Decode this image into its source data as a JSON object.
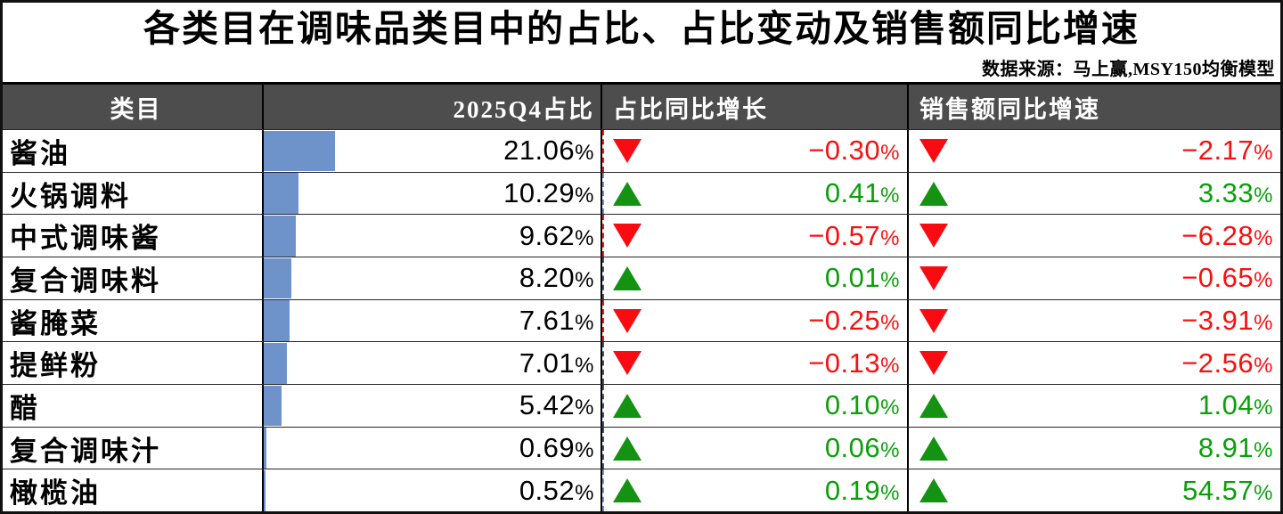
{
  "title": "各类目在调味品类目中的占比、占比变动及销售额同比增速",
  "source": "数据来源：马上赢,MSY150均衡模型",
  "colors": {
    "header_bg": "#4d4d4d",
    "header_text": "#ffffff",
    "bar": "#6e93cb",
    "up_text": "#0aa00a",
    "down_text": "#f8100f",
    "up_triangle": "#149312",
    "down_triangle": "#fb0a12"
  },
  "table": {
    "headers": [
      "类目",
      "2025Q4占比",
      "占比同比增长",
      "销售额同比增速"
    ],
    "rows": [
      {
        "category": "酱油",
        "share": "21.06%",
        "change": "−0.30%",
        "change_dir": "down",
        "growth": "−2.17%",
        "growth_dir": "down"
      },
      {
        "category": "火锅调料",
        "share": "10.29%",
        "change": "0.41%",
        "change_dir": "up",
        "growth": "3.33%",
        "growth_dir": "up"
      },
      {
        "category": "中式调味酱",
        "share": "9.62%",
        "change": "−0.57%",
        "change_dir": "down",
        "growth": "−6.28%",
        "growth_dir": "down"
      },
      {
        "category": "复合调味料",
        "share": "8.20%",
        "change": "0.01%",
        "change_dir": "up",
        "growth": "−0.65%",
        "growth_dir": "down"
      },
      {
        "category": "酱腌菜",
        "share": "7.61%",
        "change": "−0.25%",
        "change_dir": "down",
        "growth": "−3.91%",
        "growth_dir": "down"
      },
      {
        "category": "提鲜粉",
        "share": "7.01%",
        "change": "−0.13%",
        "change_dir": "down",
        "growth": "−2.56%",
        "growth_dir": "down"
      },
      {
        "category": "醋",
        "share": "5.42%",
        "change": "0.10%",
        "change_dir": "up",
        "growth": "1.04%",
        "growth_dir": "up"
      },
      {
        "category": "复合调味汁",
        "share": "0.69%",
        "change": "0.06%",
        "change_dir": "up",
        "growth": "8.91%",
        "growth_dir": "up"
      },
      {
        "category": "橄榄油",
        "share": "0.52%",
        "change": "0.19%",
        "change_dir": "up",
        "growth": "54.57%",
        "growth_dir": "up"
      }
    ]
  },
  "chart_data": {
    "type": "table",
    "title": "各类目在调味品类目中的占比、占比变动及销售额同比增速",
    "source": "数据来源：马上赢,MSY150均衡模型",
    "categories": [
      "酱油",
      "火锅调料",
      "中式调味酱",
      "复合调味料",
      "酱腌菜",
      "提鲜粉",
      "醋",
      "复合调味汁",
      "橄榄油"
    ],
    "series": [
      {
        "name": "2025Q4占比",
        "unit": "%",
        "values": [
          21.06,
          10.29,
          9.62,
          8.2,
          7.61,
          7.01,
          5.42,
          0.69,
          0.52
        ]
      },
      {
        "name": "占比同比增长",
        "unit": "%",
        "values": [
          -0.3,
          0.41,
          -0.57,
          0.01,
          -0.25,
          -0.13,
          0.1,
          0.06,
          0.19
        ]
      },
      {
        "name": "销售额同比增速",
        "unit": "%",
        "values": [
          -2.17,
          3.33,
          -6.28,
          -0.65,
          -3.91,
          -2.56,
          1.04,
          8.91,
          54.57
        ]
      }
    ],
    "layout": {
      "share_bar_embedded_in_cells": true,
      "bar_scale_percent_of_column": 1.0,
      "grid": true,
      "legend": "none"
    }
  }
}
